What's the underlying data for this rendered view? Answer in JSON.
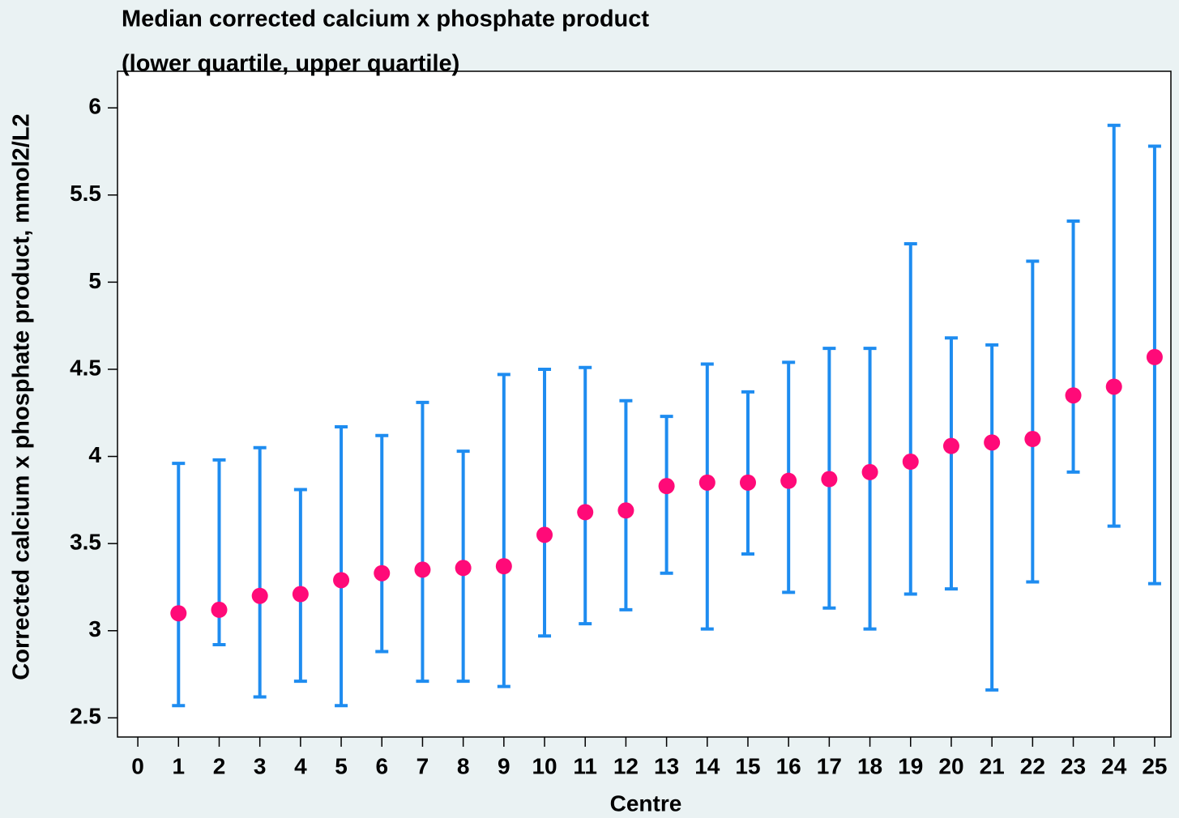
{
  "chart_data": {
    "type": "errorbar",
    "title": "Median corrected calcium x phosphate product",
    "subtitle": "(lower quartile, upper quartile)",
    "x_label": "Centre",
    "y_label": "Corrected calcium x phosphate product, mmol2/L2",
    "x": [
      1,
      2,
      3,
      4,
      5,
      6,
      7,
      8,
      9,
      10,
      11,
      12,
      13,
      14,
      15,
      16,
      17,
      18,
      19,
      20,
      21,
      22,
      23,
      24,
      25
    ],
    "series": [
      {
        "color": "#ff0a78",
        "error_color": "#1e8cf0",
        "values": [
          3.1,
          3.12,
          3.2,
          3.21,
          3.29,
          3.33,
          3.35,
          3.36,
          3.37,
          3.55,
          3.68,
          3.69,
          3.83,
          3.85,
          3.85,
          3.86,
          3.87,
          3.91,
          3.97,
          4.06,
          4.08,
          4.1,
          4.35,
          4.4,
          4.57
        ],
        "lower": [
          2.57,
          2.92,
          2.62,
          2.71,
          2.57,
          2.88,
          2.71,
          2.71,
          2.68,
          2.97,
          3.04,
          3.12,
          3.33,
          3.01,
          3.44,
          3.22,
          3.13,
          3.01,
          3.21,
          3.24,
          2.66,
          3.28,
          3.91,
          3.6,
          3.27
        ],
        "upper": [
          3.96,
          3.98,
          4.05,
          3.81,
          4.17,
          4.12,
          4.31,
          4.03,
          4.47,
          4.5,
          4.51,
          4.32,
          4.23,
          4.53,
          4.37,
          4.54,
          4.62,
          4.62,
          5.22,
          4.68,
          4.64,
          5.12,
          5.35,
          5.9,
          5.78
        ]
      }
    ],
    "xlim": [
      -0.5,
      25.4
    ],
    "ylim": [
      2.39,
      6.21
    ],
    "xticks": [
      0,
      1,
      2,
      3,
      4,
      5,
      6,
      7,
      8,
      9,
      10,
      11,
      12,
      13,
      14,
      15,
      16,
      17,
      18,
      19,
      20,
      21,
      22,
      23,
      24,
      25
    ],
    "yticks": [
      2.5,
      3,
      3.5,
      4,
      4.5,
      5,
      5.5,
      6
    ]
  }
}
